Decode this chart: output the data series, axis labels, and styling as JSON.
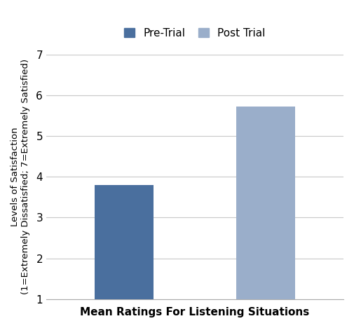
{
  "categories": [
    "Pre-Trial",
    "Post Trial"
  ],
  "values": [
    3.8,
    5.72
  ],
  "bar_colors": [
    "#4a6f9e",
    "#9aaeca"
  ],
  "bar_width": 0.42,
  "xlabel": "Mean Ratings For Listening Situations",
  "ylabel": "Levels of Satisfaction\n(1=Extremely Dissatisfied; 7=Extremely Satisfied)",
  "ylim": [
    1,
    7
  ],
  "yticks": [
    1,
    2,
    3,
    4,
    5,
    6,
    7
  ],
  "legend_labels": [
    "Pre-Trial",
    "Post Trial"
  ],
  "legend_colors": [
    "#4a6f9e",
    "#9aaeca"
  ],
  "background_color": "#ffffff",
  "grid_color": "#c8c8c8",
  "label_fontsize": 11,
  "tick_fontsize": 11,
  "legend_fontsize": 11
}
